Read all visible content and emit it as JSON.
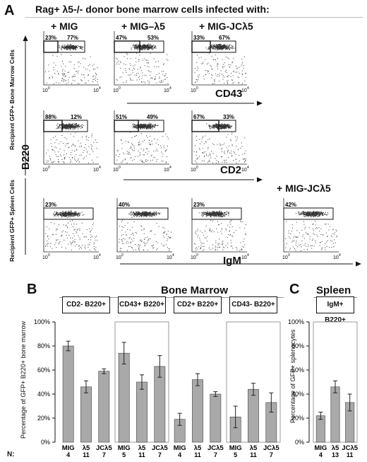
{
  "panel_a": {
    "letter": "A",
    "title": "Rag+ λ5-/- donor bone marrow cells infected with:",
    "conditions": [
      "+ MIG",
      "+ MIG–λ5",
      "+ MIG-JCλ5"
    ],
    "spleen_extra_condition": "+ MIG-JCλ5",
    "b220_label": "B220",
    "bm_side_label": "Recipient GFP+ Bone Marrow Cells",
    "spleen_side_label": "Recipient GFP+ Spleen Cells",
    "tick_low": "10",
    "tick_high": "10",
    "tick_exp_low": "0",
    "tick_exp_high": "4",
    "rows": [
      {
        "x_label": "CD43",
        "gates": [
          [
            "23%",
            "77%"
          ],
          [
            "47%",
            "53%"
          ],
          [
            "33%",
            "67%"
          ]
        ]
      },
      {
        "x_label": "CD2",
        "gates": [
          [
            "88%",
            "12%"
          ],
          [
            "51%",
            "49%"
          ],
          [
            "67%",
            "33%"
          ]
        ]
      },
      {
        "x_label": "IgM",
        "gates": [
          [
            "23%"
          ],
          [
            "40%"
          ],
          [
            "23%"
          ],
          [
            "42%"
          ]
        ]
      }
    ]
  },
  "panel_b": {
    "letter": "B",
    "header": "Bone Marrow",
    "ylabel": "Percentage of GFP+ B220+ bone marrow",
    "n_label": "N:"
  },
  "panel_c": {
    "letter": "C",
    "header": "Spleen",
    "ylabel": "Percentage of GFP+ splenocytes"
  },
  "chart_data": [
    {
      "type": "bar",
      "yticks": [
        "0%",
        "20%",
        "40%",
        "60%",
        "80%",
        "100%"
      ],
      "ylim": [
        0,
        100
      ],
      "groups": [
        {
          "name": "CD2-  B220+",
          "categories": [
            "MIG",
            "λ5",
            "JCλ5"
          ],
          "values": [
            80,
            46,
            59
          ],
          "errors": [
            4,
            5,
            2
          ],
          "n": [
            "4",
            "11",
            "7"
          ]
        },
        {
          "name": "CD43+  B220+",
          "categories": [
            "MIG",
            "λ5",
            "JCλ5"
          ],
          "values": [
            74,
            50,
            63
          ],
          "errors": [
            9,
            6,
            9
          ],
          "n": [
            "5",
            "11",
            "7"
          ]
        },
        {
          "name": "CD2+ B220+",
          "categories": [
            "MIG",
            "λ5",
            "JCλ5"
          ],
          "values": [
            19,
            52,
            40
          ],
          "errors": [
            5,
            5,
            2
          ],
          "n": [
            "4",
            "11",
            "7"
          ]
        },
        {
          "name": "CD43-  B220+",
          "categories": [
            "MIG",
            "λ5",
            "JCλ5"
          ],
          "values": [
            21,
            44,
            33
          ],
          "errors": [
            9,
            5,
            8
          ],
          "n": [
            "5",
            "11",
            "7"
          ]
        }
      ]
    },
    {
      "type": "bar",
      "yticks": [
        "0%",
        "20%",
        "40%",
        "60%",
        "80%",
        "100%"
      ],
      "ylim": [
        0,
        100
      ],
      "groups": [
        {
          "name": "IgM+  B220+",
          "categories": [
            "MIG",
            "λ5",
            "JCλ5"
          ],
          "values": [
            22,
            46,
            33
          ],
          "errors": [
            3,
            5,
            7
          ],
          "n": [
            "4",
            "13",
            "11"
          ]
        }
      ]
    }
  ]
}
